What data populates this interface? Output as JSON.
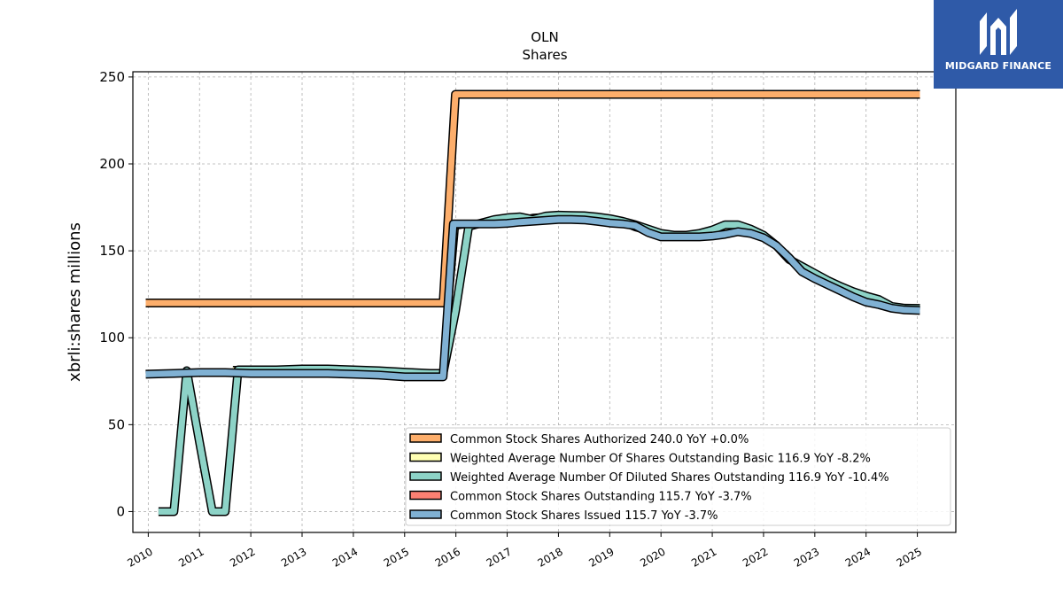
{
  "brand": {
    "name": "MIDGARD FINANCE",
    "logo_icon": "midgard-logo-icon",
    "background": "#2f5aa8"
  },
  "chart_data": {
    "type": "line",
    "title": "OLN",
    "subtitle": "Shares",
    "xlabel": "",
    "ylabel": "xbrli:shares millions",
    "xlim": [
      2009.7,
      2025.75
    ],
    "ylim": [
      -12,
      253
    ],
    "yticks": [
      0,
      50,
      100,
      150,
      200,
      250
    ],
    "xticks": [
      "2010",
      "2011",
      "2012",
      "2013",
      "2014",
      "2015",
      "2016",
      "2017",
      "2018",
      "2019",
      "2020",
      "2021",
      "2022",
      "2023",
      "2024",
      "2025"
    ],
    "grid": true,
    "legend_position": "lower-right",
    "series": [
      {
        "name": "Common Stock Shares Authorized",
        "legend_label": "Common Stock Shares Authorized  240.0 YoY +0.0%",
        "color": "#fdae6b",
        "width": 7,
        "x": [
          2009.95,
          2015.75,
          2015.99,
          2025.05
        ],
        "y": [
          120,
          120,
          240,
          240
        ]
      },
      {
        "name": "Weighted Average Number Of Shares Outstanding Basic",
        "legend_label": "Weighted Average Number Of Shares Outstanding Basic  116.9 YoY -8.2%",
        "color": "#ffffb3",
        "width": 4,
        "x": [
          2011.65,
          2012.0,
          2012.5,
          2013.0,
          2013.5,
          2014.0,
          2014.5,
          2015.0,
          2015.5,
          2015.75,
          2016.0,
          2016.25,
          2016.5,
          2016.75,
          2017.0,
          2017.25,
          2017.5,
          2017.75,
          2018.0,
          2018.25,
          2018.5,
          2018.75,
          2019.0,
          2019.25,
          2019.5,
          2019.75,
          2020.0,
          2020.25,
          2020.5,
          2020.75,
          2021.0,
          2021.25,
          2021.5,
          2021.75,
          2022.0,
          2022.25,
          2022.5,
          2022.75,
          2023.0,
          2023.25,
          2023.5,
          2023.75,
          2024.0,
          2024.25,
          2024.5,
          2024.75,
          2025.05
        ],
        "y": [
          82,
          82,
          82,
          82.3,
          82.5,
          82,
          81.5,
          80.8,
          80,
          80,
          164,
          165,
          166.5,
          167.5,
          168.5,
          168,
          169.5,
          170,
          169.8,
          169.5,
          169.3,
          168.5,
          167.5,
          166,
          163,
          161,
          159,
          159,
          159,
          159.5,
          160.5,
          163,
          163.5,
          161,
          158,
          153,
          145,
          140,
          135,
          131,
          127,
          124,
          122,
          121,
          118,
          117,
          116.9
        ]
      },
      {
        "name": "Weighted Average Number Of Diluted Shares Outstanding",
        "legend_label": "Weighted Average Number Of Diluted Shares Outstanding  116.9 YoY -10.4%",
        "color": "#8dd3c7",
        "width": 7,
        "x": [
          2010.2,
          2010.5,
          2010.75,
          2011.0,
          2011.25,
          2011.5,
          2011.75,
          2012.0,
          2012.5,
          2013.0,
          2013.5,
          2014.0,
          2014.5,
          2015.0,
          2015.5,
          2015.75,
          2015.99,
          2016.25,
          2016.5,
          2016.75,
          2017.0,
          2017.25,
          2017.5,
          2017.75,
          2018.0,
          2018.25,
          2018.5,
          2018.75,
          2019.0,
          2019.25,
          2019.5,
          2019.75,
          2020.0,
          2020.25,
          2020.5,
          2020.75,
          2021.0,
          2021.25,
          2021.5,
          2021.75,
          2022.0,
          2022.25,
          2022.5,
          2022.75,
          2023.0,
          2023.25,
          2023.5,
          2023.75,
          2024.0,
          2024.25,
          2024.5,
          2024.75,
          2025.05
        ],
        "y": [
          0,
          0,
          81,
          40,
          0,
          0,
          81.5,
          81.5,
          81.5,
          82,
          82,
          81.5,
          81,
          80.2,
          79.5,
          79.5,
          115,
          164,
          166,
          168,
          169,
          169.5,
          168,
          170,
          170.5,
          170.3,
          170.2,
          169.5,
          168.5,
          167,
          165,
          162.5,
          160,
          159,
          159,
          160,
          162,
          165,
          165,
          162.5,
          159,
          153,
          145,
          141,
          137,
          133,
          129.5,
          126.5,
          124,
          122,
          118,
          117,
          116.9
        ]
      },
      {
        "name": "Common Stock Shares Outstanding",
        "legend_label": "Common Stock Shares Outstanding  115.7 YoY -3.7%",
        "color": "#fb8072",
        "width": 4,
        "x": [
          2009.95,
          2010.5,
          2011.0,
          2011.5,
          2012.0,
          2012.5,
          2013.0,
          2013.5,
          2014.0,
          2014.5,
          2015.0,
          2015.5,
          2015.75,
          2015.95,
          2016.25,
          2016.5,
          2016.75,
          2017.0,
          2017.25,
          2017.5,
          2017.75,
          2018.0,
          2018.25,
          2018.5,
          2018.75,
          2019.0,
          2019.25,
          2019.5,
          2019.75,
          2020.0,
          2020.25,
          2020.5,
          2020.75,
          2021.0,
          2021.25,
          2021.5,
          2021.75,
          2022.0,
          2022.25,
          2022.5,
          2022.75,
          2023.0,
          2023.25,
          2023.5,
          2023.75,
          2024.0,
          2024.25,
          2024.5,
          2024.75,
          2025.05
        ],
        "y": [
          79,
          79.5,
          80,
          80,
          79.5,
          79.5,
          79.5,
          79.5,
          79,
          78.5,
          77.5,
          77.5,
          77.5,
          165.5,
          165.5,
          165.5,
          165.5,
          165.8,
          166.5,
          167,
          167.5,
          168,
          168,
          167.8,
          167,
          166,
          165.5,
          164.5,
          160.5,
          158,
          158,
          158,
          158,
          158.5,
          159.5,
          161,
          160,
          157.5,
          153,
          146,
          138,
          134,
          130.5,
          127,
          123.5,
          120.5,
          119,
          117,
          116,
          115.7
        ]
      },
      {
        "name": "Common Stock Shares Issued",
        "legend_label": "Common Stock Shares Issued  115.7 YoY -3.7%",
        "color": "#80b1d3",
        "width": 7,
        "x": [
          2009.95,
          2010.5,
          2011.0,
          2011.5,
          2012.0,
          2012.5,
          2013.0,
          2013.5,
          2014.0,
          2014.5,
          2015.0,
          2015.5,
          2015.75,
          2015.95,
          2016.25,
          2016.5,
          2016.75,
          2017.0,
          2017.25,
          2017.5,
          2017.75,
          2018.0,
          2018.25,
          2018.5,
          2018.75,
          2019.0,
          2019.25,
          2019.5,
          2019.75,
          2020.0,
          2020.25,
          2020.5,
          2020.75,
          2021.0,
          2021.25,
          2021.5,
          2021.75,
          2022.0,
          2022.25,
          2022.5,
          2022.75,
          2023.0,
          2023.25,
          2023.5,
          2023.75,
          2024.0,
          2024.25,
          2024.5,
          2024.75,
          2025.05
        ],
        "y": [
          79,
          79.5,
          80,
          80,
          79.5,
          79.5,
          79.5,
          79.5,
          79,
          78.5,
          77.5,
          77.5,
          77.5,
          165.5,
          165.5,
          165.5,
          165.5,
          165.8,
          166.5,
          167,
          167.5,
          168,
          168,
          167.8,
          167,
          166,
          165.5,
          164.5,
          160.5,
          158,
          158,
          158,
          158,
          158.5,
          159.5,
          161,
          160,
          157.5,
          153,
          146,
          138,
          134,
          130.5,
          127,
          123.5,
          120.5,
          119,
          117,
          116,
          115.7
        ]
      }
    ]
  }
}
